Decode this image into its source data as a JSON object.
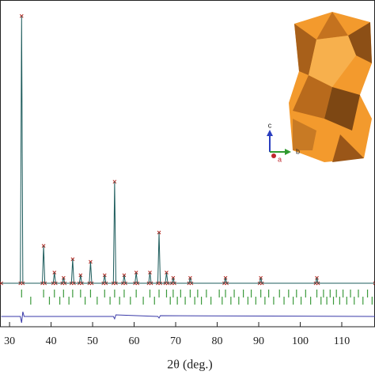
{
  "chart_data": [
    {
      "type": "line",
      "xlabel": "2θ (deg.)",
      "xlim": [
        27.7,
        118
      ],
      "xticks": [
        30,
        40,
        50,
        60,
        70,
        80,
        90,
        100,
        110
      ],
      "ylim": [
        -2,
        106
      ],
      "inset_axis_labels": [
        "c",
        "b",
        "a"
      ],
      "x": [
        28,
        32.6,
        32.9,
        33.2,
        37.9,
        38.2,
        38.5,
        40.5,
        40.8,
        41.1,
        42.7,
        43,
        43.3,
        44.9,
        45.2,
        45.5,
        46.8,
        47.1,
        47.4,
        49.2,
        49.5,
        49.8,
        52.6,
        52.9,
        53.2,
        55.0,
        55.3,
        55.6,
        57.3,
        57.6,
        57.9,
        60.2,
        60.5,
        60.8,
        63.5,
        63.8,
        64.1,
        65.7,
        66.0,
        66.3,
        67.5,
        67.8,
        68.1,
        69.1,
        69.4,
        69.7,
        73.2,
        73.5,
        73.8,
        81.7,
        82,
        82.3,
        90.2,
        90.5,
        90.8,
        103.7,
        104,
        104.3,
        118
      ],
      "series": [
        {
          "color": "#b3261e",
          "marker": "x",
          "values": [
            0,
            0,
            100,
            0,
            0,
            14,
            0,
            0,
            4,
            0,
            0,
            2,
            0,
            0,
            9,
            0,
            0,
            3,
            0,
            0,
            8,
            0,
            0,
            3,
            0,
            0,
            38,
            0,
            0,
            3,
            0,
            0,
            4,
            0,
            0,
            4,
            0,
            0,
            19,
            0,
            0,
            4,
            0,
            0,
            2,
            0,
            0,
            2,
            0,
            0,
            2,
            0,
            0,
            2,
            0,
            0,
            2,
            0,
            0
          ]
        },
        {
          "color": "#1d5c5c",
          "marker": "none",
          "values": [
            0,
            0,
            100,
            0,
            0,
            14,
            0,
            0,
            4,
            0,
            0,
            2,
            0,
            0,
            9,
            0,
            0,
            3,
            0,
            0,
            8,
            0,
            0,
            3,
            0,
            0,
            38,
            0,
            0,
            3,
            0,
            0,
            4,
            0,
            0,
            4,
            0,
            0,
            19,
            0,
            0,
            4,
            0,
            0,
            2,
            0,
            0,
            2,
            0,
            0,
            2,
            0,
            0,
            2,
            0,
            0,
            2,
            0,
            0
          ]
        }
      ]
    },
    {
      "type": "rug",
      "color": "#3c9a3c",
      "xlim": [
        27.7,
        118
      ],
      "rows": [
        [
          32.9,
          38.2,
          40.8,
          43,
          45.2,
          47.1,
          49.5,
          52.9,
          55.3,
          57.6,
          60.5,
          63.8,
          66,
          67.8,
          69.4,
          71.2,
          73.5,
          75.3,
          77.4,
          80.5,
          82,
          84.1,
          86.3,
          88.2,
          90.5,
          92.4,
          95,
          97.2,
          99.1,
          101.3,
          104,
          105.6,
          107.2,
          108.7,
          110.3,
          112.1,
          114,
          116.2
        ],
        [
          35.1,
          39.6,
          42.1,
          44.3,
          48.2,
          51.1,
          54.2,
          56.5,
          59.1,
          62.2,
          64.9,
          68.7,
          70.4,
          72.3,
          74.6,
          76.2,
          78.5,
          81.2,
          83.3,
          85.2,
          87.4,
          89.3,
          91.5,
          93.6,
          96.1,
          98.3,
          100.2,
          102.5,
          105,
          106.4,
          108,
          109.5,
          111.2,
          113,
          115.1,
          117.3
        ]
      ]
    },
    {
      "type": "line",
      "xlim": [
        27.7,
        118
      ],
      "ylim": [
        -10,
        10
      ],
      "x": [
        28,
        32.6,
        32.9,
        33.2,
        33.5,
        55.0,
        55.3,
        55.6,
        65.7,
        66.0,
        66.3,
        118
      ],
      "series": [
        {
          "color": "#3a3aa8",
          "marker": "none",
          "values": [
            0,
            0,
            -8,
            6,
            0,
            0,
            -3,
            2,
            0,
            -2,
            1,
            0
          ]
        }
      ]
    }
  ]
}
